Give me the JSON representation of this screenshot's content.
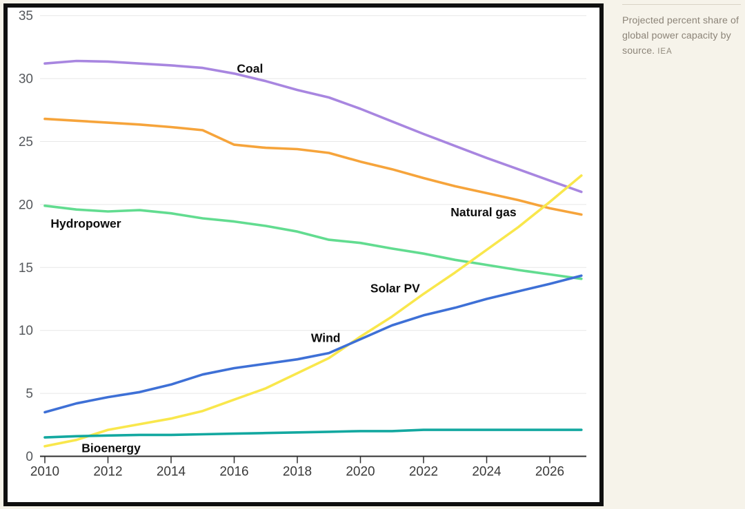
{
  "page": {
    "background": "#f6f3ea"
  },
  "sidebar": {
    "caption": "Projected percent share of global power capacity by source.",
    "source": "IEA"
  },
  "chart_data": {
    "type": "line",
    "title": "",
    "xlabel": "",
    "ylabel": "",
    "x": [
      2010,
      2011,
      2012,
      2013,
      2014,
      2015,
      2016,
      2017,
      2018,
      2019,
      2020,
      2021,
      2022,
      2023,
      2024,
      2025,
      2026,
      2027
    ],
    "x_ticks": [
      2010,
      2012,
      2014,
      2016,
      2018,
      2020,
      2022,
      2024,
      2026
    ],
    "x_tick_labels": [
      "2010",
      "2012",
      "2014",
      "2016",
      "2018",
      "2020",
      "2022",
      "2024",
      "2026"
    ],
    "xlim": [
      2010,
      2027
    ],
    "y_ticks": [
      0,
      5,
      10,
      15,
      20,
      25,
      30,
      35
    ],
    "y_tick_labels": [
      "0",
      "5",
      "10",
      "15",
      "20",
      "25",
      "30",
      "35"
    ],
    "ylim": [
      0,
      35
    ],
    "grid": true,
    "legend_position": "inline-labels",
    "style": {
      "grid_color": "#e7e7e7",
      "axis_color": "#2f2f2f",
      "line_width": 3.6
    },
    "series": [
      {
        "name": "Coal",
        "color": "#a886e0",
        "values": [
          31.2,
          31.4,
          31.35,
          31.2,
          31.05,
          30.85,
          30.4,
          29.8,
          29.1,
          28.5,
          27.6,
          26.6,
          25.6,
          24.65,
          23.7,
          22.8,
          21.9,
          21.0
        ],
        "label": {
          "text": "Coal",
          "year": 2016.5,
          "value": 30.8
        }
      },
      {
        "name": "Natural gas",
        "color": "#f6a43b",
        "values": [
          26.8,
          26.65,
          26.5,
          26.35,
          26.15,
          25.9,
          24.75,
          24.5,
          24.4,
          24.1,
          23.4,
          22.8,
          22.1,
          21.45,
          20.9,
          20.35,
          19.7,
          19.2
        ],
        "label": {
          "text": "Natural gas",
          "year": 2023.9,
          "value": 19.4
        }
      },
      {
        "name": "Hydropower",
        "color": "#62dc90",
        "values": [
          19.9,
          19.6,
          19.45,
          19.55,
          19.3,
          18.9,
          18.65,
          18.3,
          17.85,
          17.2,
          16.95,
          16.5,
          16.1,
          15.6,
          15.2,
          14.8,
          14.45,
          14.1
        ],
        "label": {
          "text": "Hydropower",
          "year": 2011.3,
          "value": 18.5
        }
      },
      {
        "name": "Solar PV",
        "color": "#f9e74c",
        "values": [
          0.8,
          1.3,
          2.1,
          2.55,
          3.0,
          3.6,
          4.5,
          5.4,
          6.6,
          7.8,
          9.5,
          11.1,
          12.9,
          14.6,
          16.4,
          18.2,
          20.2,
          22.3
        ],
        "label": {
          "text": "Solar PV",
          "year": 2021.1,
          "value": 13.35
        }
      },
      {
        "name": "Wind",
        "color": "#3e70d6",
        "values": [
          3.5,
          4.2,
          4.7,
          5.1,
          5.7,
          6.5,
          7.0,
          7.35,
          7.7,
          8.2,
          9.3,
          10.4,
          11.2,
          11.8,
          12.5,
          13.1,
          13.7,
          14.35
        ],
        "label": {
          "text": "Wind",
          "year": 2018.9,
          "value": 9.4
        }
      },
      {
        "name": "Bioenergy",
        "color": "#13a8a0",
        "values": [
          1.5,
          1.6,
          1.65,
          1.7,
          1.7,
          1.75,
          1.8,
          1.85,
          1.9,
          1.95,
          2.0,
          2.0,
          2.1,
          2.1,
          2.1,
          2.1,
          2.1,
          2.1
        ],
        "label": {
          "text": "Bioenergy",
          "year": 2012.1,
          "value": 0.65
        }
      }
    ],
    "draw_order": [
      "Coal",
      "Natural gas",
      "Hydropower",
      "Solar PV",
      "Wind",
      "Bioenergy"
    ]
  }
}
